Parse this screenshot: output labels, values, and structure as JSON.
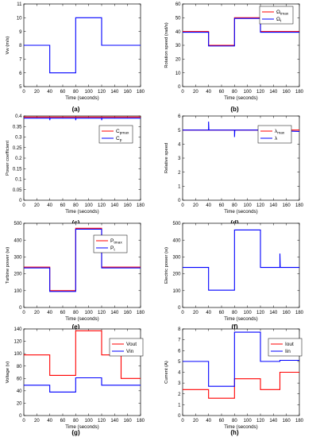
{
  "chart_data": [
    {
      "panel": "(a)",
      "type": "line",
      "xlabel": "Time (seconds)",
      "ylabel": "Vw (m/s)",
      "xlim": [
        0,
        180
      ],
      "ylim": [
        5,
        11
      ],
      "xticks": [
        "0",
        "20",
        "40",
        "60",
        "80",
        "100",
        "120",
        "140",
        "160",
        "180"
      ],
      "yticks": [
        "5",
        "6",
        "7",
        "8",
        "9",
        "10",
        "11"
      ],
      "legend": [],
      "series": [
        {
          "color": "#0000ff",
          "x": [
            0,
            40,
            40,
            80,
            80,
            120,
            120,
            180
          ],
          "y": [
            8,
            8,
            6,
            6,
            10,
            10,
            8,
            8
          ]
        }
      ]
    },
    {
      "panel": "(b)",
      "type": "line",
      "xlabel": "Time (seconds)",
      "ylabel": "Rotation speed (rad/s)",
      "xlim": [
        0,
        180
      ],
      "ylim": [
        0,
        60
      ],
      "xticks": [
        "0",
        "20",
        "40",
        "60",
        "80",
        "100",
        "120",
        "140",
        "160",
        "180"
      ],
      "yticks": [
        "0",
        "10",
        "20",
        "30",
        "40",
        "50",
        "60"
      ],
      "legend": [
        "Ωtmax",
        "Ωt"
      ],
      "series": [
        {
          "name": "Ωtmax",
          "color": "#ff0000",
          "x": [
            0,
            40,
            40,
            80,
            80,
            120,
            120,
            180
          ],
          "y": [
            40,
            40,
            30,
            30,
            50,
            50,
            40,
            40
          ]
        },
        {
          "name": "Ωt",
          "color": "#0000ff",
          "x": [
            0,
            40,
            40,
            80,
            80,
            120,
            120,
            180
          ],
          "y": [
            39.5,
            39.5,
            29.5,
            29.5,
            49.5,
            49.5,
            39.5,
            39.5
          ]
        }
      ]
    },
    {
      "panel": "(c)",
      "type": "line",
      "xlabel": "Time (seconds)",
      "ylabel": "Power coefficient",
      "xlim": [
        0,
        180
      ],
      "ylim": [
        0,
        0.4
      ],
      "xticks": [
        "0",
        "20",
        "40",
        "60",
        "80",
        "100",
        "120",
        "140",
        "160",
        "180"
      ],
      "yticks": [
        "0",
        "0.05",
        "0.1",
        "0.15",
        "0.2",
        "0.25",
        "0.3",
        "0.35",
        "0.4"
      ],
      "legend": [
        "Cpmax",
        "Cp"
      ],
      "series": [
        {
          "name": "Cpmax",
          "color": "#ff0000",
          "x": [
            0,
            180
          ],
          "y": [
            0.395,
            0.395
          ]
        },
        {
          "name": "Cp",
          "color": "#0000ff",
          "x": [
            0,
            40,
            40,
            40.5,
            80,
            80,
            80.5,
            120,
            120,
            120.5,
            180
          ],
          "y": [
            0.39,
            0.39,
            0.38,
            0.39,
            0.39,
            0.38,
            0.39,
            0.39,
            0.38,
            0.39,
            0.39
          ]
        }
      ]
    },
    {
      "panel": "(d)",
      "type": "line",
      "xlabel": "Time (seconds)",
      "ylabel": "Relative speed",
      "xlim": [
        0,
        180
      ],
      "ylim": [
        0,
        6
      ],
      "xticks": [
        "0",
        "20",
        "40",
        "60",
        "80",
        "100",
        "120",
        "140",
        "160",
        "180"
      ],
      "yticks": [
        "0",
        "1",
        "2",
        "3",
        "4",
        "5",
        "6"
      ],
      "legend": [
        "λmax",
        "λ"
      ],
      "series": [
        {
          "name": "λmax",
          "color": "#ff0000",
          "x": [
            0,
            180
          ],
          "y": [
            5,
            5
          ]
        },
        {
          "name": "λ",
          "color": "#0000ff",
          "x": [
            0,
            40,
            40,
            40.5,
            80,
            80,
            80.5,
            120,
            120,
            120.5,
            180
          ],
          "y": [
            5,
            5,
            5.6,
            5,
            5,
            4.5,
            5,
            5,
            5.2,
            5,
            4.9
          ]
        }
      ]
    },
    {
      "panel": "(e)",
      "type": "line",
      "xlabel": "Time (seconds)",
      "ylabel": "Turbine power (w)",
      "xlim": [
        0,
        180
      ],
      "ylim": [
        0,
        500
      ],
      "xticks": [
        "0",
        "20",
        "40",
        "60",
        "80",
        "100",
        "120",
        "140",
        "160",
        "180"
      ],
      "yticks": [
        "0",
        "100",
        "200",
        "300",
        "400",
        "500"
      ],
      "legend": [
        "Ptmax",
        "Pt"
      ],
      "series": [
        {
          "name": "Ptmax",
          "color": "#ff0000",
          "x": [
            0,
            40,
            40,
            80,
            80,
            120,
            120,
            180
          ],
          "y": [
            240,
            240,
            100,
            100,
            470,
            470,
            240,
            240
          ]
        },
        {
          "name": "Pt",
          "color": "#0000ff",
          "x": [
            0,
            40,
            40,
            80,
            80,
            120,
            120,
            180
          ],
          "y": [
            235,
            235,
            95,
            95,
            465,
            465,
            235,
            235
          ]
        }
      ]
    },
    {
      "panel": "(f)",
      "type": "line",
      "xlabel": "Time (seconds)",
      "ylabel": "Electric power (w)",
      "xlim": [
        0,
        180
      ],
      "ylim": [
        0,
        500
      ],
      "xticks": [
        "0",
        "20",
        "40",
        "60",
        "80",
        "100",
        "120",
        "140",
        "160",
        "180"
      ],
      "yticks": [
        "0",
        "100",
        "200",
        "300",
        "400",
        "500"
      ],
      "legend": [],
      "series": [
        {
          "color": "#0000ff",
          "x": [
            0,
            40,
            40,
            80,
            80,
            120,
            120,
            150,
            150,
            150.5,
            180
          ],
          "y": [
            238,
            238,
            103,
            103,
            460,
            460,
            238,
            238,
            320,
            238,
            238
          ]
        }
      ]
    },
    {
      "panel": "(g)",
      "type": "line",
      "xlabel": "Time (seconds)",
      "ylabel": "Voltage (v)",
      "xlim": [
        0,
        180
      ],
      "ylim": [
        0,
        140
      ],
      "xticks": [
        "0",
        "20",
        "40",
        "60",
        "80",
        "100",
        "120",
        "140",
        "160",
        "180"
      ],
      "yticks": [
        "0",
        "20",
        "40",
        "60",
        "80",
        "100",
        "120",
        "140"
      ],
      "legend": [
        "Vout",
        "Vin"
      ],
      "series": [
        {
          "name": "Vout",
          "color": "#ff0000",
          "x": [
            0,
            40,
            40,
            80,
            80,
            120,
            120,
            150,
            150,
            180
          ],
          "y": [
            98,
            98,
            65,
            65,
            137,
            137,
            98,
            98,
            60,
            60
          ]
        },
        {
          "name": "Vin",
          "color": "#0000ff",
          "x": [
            0,
            40,
            40,
            80,
            80,
            120,
            120,
            180
          ],
          "y": [
            49,
            49,
            38,
            38,
            61,
            61,
            49,
            49
          ]
        }
      ]
    },
    {
      "panel": "(h)",
      "type": "line",
      "xlabel": "Time (seconds)",
      "ylabel": "Current (A)",
      "xlim": [
        0,
        180
      ],
      "ylim": [
        0,
        8
      ],
      "xticks": [
        "0",
        "20",
        "40",
        "60",
        "80",
        "100",
        "120",
        "140",
        "160",
        "180"
      ],
      "yticks": [
        "0",
        "1",
        "2",
        "3",
        "4",
        "5",
        "6",
        "7",
        "8"
      ],
      "legend": [
        "Iout",
        "Iin"
      ],
      "series": [
        {
          "name": "Iout",
          "color": "#ff0000",
          "x": [
            0,
            40,
            40,
            80,
            80,
            120,
            120,
            150,
            150,
            180
          ],
          "y": [
            2.4,
            2.4,
            1.6,
            1.6,
            3.4,
            3.4,
            2.4,
            2.4,
            4,
            4
          ]
        },
        {
          "name": "Iin",
          "color": "#0000ff",
          "x": [
            0,
            40,
            40,
            80,
            80,
            120,
            120,
            150,
            150,
            180
          ],
          "y": [
            5,
            5,
            2.7,
            2.7,
            7.7,
            7.7,
            5,
            5,
            5.1,
            5.1
          ]
        }
      ]
    }
  ]
}
